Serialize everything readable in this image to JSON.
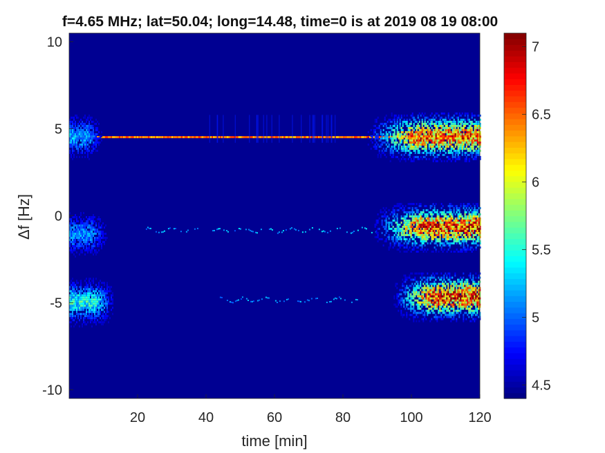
{
  "chart_data": {
    "type": "heatmap",
    "title": "f=4.65 MHz;  lat=50.04; long=14.48, time=0 is at 2019 08 19 08:00",
    "xlabel": "time [min]",
    "ylabel": "Δf [Hz]",
    "xlim": [
      0,
      120
    ],
    "ylim": [
      -10.5,
      10.5
    ],
    "x_ticks": [
      20,
      40,
      60,
      80,
      100,
      120
    ],
    "y_ticks": [
      -10,
      -5,
      0,
      5,
      10
    ],
    "y_tick_labels": [
      "-10",
      "-5",
      "0",
      "5",
      "10"
    ],
    "colorbar": {
      "colormap": "jet",
      "range": [
        4.4,
        7.1
      ],
      "ticks": [
        4.5,
        5,
        5.5,
        6,
        6.5,
        7
      ],
      "tick_labels": [
        "4.5",
        "5",
        "5.5",
        "6",
        "6.5",
        "7"
      ]
    },
    "background_level": 4.45,
    "features": [
      {
        "kind": "line",
        "df": 4.5,
        "t_start": 0,
        "t_end": 120,
        "level": 6.6
      },
      {
        "kind": "blob",
        "df": 4.6,
        "t_start": 0,
        "t_end": 10,
        "level": 5.3
      },
      {
        "kind": "blob",
        "df": 4.6,
        "t_start": 86,
        "t_end": 120,
        "level": 6.8
      },
      {
        "kind": "blob",
        "df": -1.0,
        "t_start": 0,
        "t_end": 12,
        "level": 5.2
      },
      {
        "kind": "trace",
        "df": -0.8,
        "t_start": 22,
        "t_end": 90,
        "level": 5.4
      },
      {
        "kind": "blob",
        "df": -0.6,
        "t_start": 88,
        "t_end": 120,
        "level": 6.9
      },
      {
        "kind": "blob",
        "df": -4.9,
        "t_start": 0,
        "t_end": 14,
        "level": 5.6
      },
      {
        "kind": "trace",
        "df": -4.8,
        "t_start": 42,
        "t_end": 86,
        "level": 5.3
      },
      {
        "kind": "blob",
        "df": -4.6,
        "t_start": 94,
        "t_end": 120,
        "level": 7.0
      }
    ]
  }
}
